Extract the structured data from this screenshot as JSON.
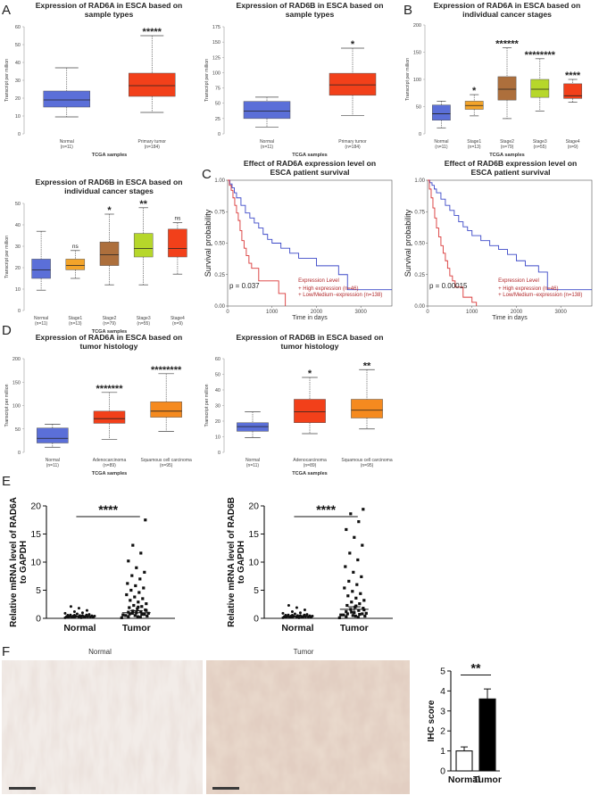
{
  "panels": {
    "A": "A",
    "B": "B",
    "C": "C",
    "D": "D",
    "E": "E",
    "F": "F"
  },
  "colors": {
    "normal": "#5b6fd8",
    "primary": "#f2401a",
    "stage1": "#f3a42a",
    "stage2": "#ad6f3c",
    "stage3": "#b6d72a",
    "stage4": "#f2401a",
    "adeno": "#f2401a",
    "squamous": "#f58a1f",
    "km_high": "#d93636",
    "km_low": "#3b48c8"
  },
  "chart_data": [
    {
      "id": "A1",
      "type": "box",
      "title": [
        "Expression of RAD6A in ESCA based on",
        "sample types"
      ],
      "ylabel": "Transcript per million",
      "xlabel": "TCGA samples",
      "ylim": [
        0,
        60
      ],
      "yticks": [
        0,
        10,
        20,
        30,
        40,
        50,
        60
      ],
      "categories": [
        "Normal",
        "Primary tumor"
      ],
      "ns": [
        "(n=11)",
        "(n=184)"
      ],
      "colorKeys": [
        "normal",
        "primary"
      ],
      "boxes": [
        [
          9.5,
          15,
          19,
          24,
          37
        ],
        [
          12,
          21,
          27,
          34,
          55
        ]
      ],
      "sig": [
        "",
        "*****"
      ]
    },
    {
      "id": "A2",
      "type": "box",
      "title": [
        "Expression of RAD6B in ESCA based on",
        "sample types"
      ],
      "ylabel": "Transcript per million",
      "xlabel": "TCGA samples",
      "ylim": [
        0,
        175
      ],
      "yticks": [
        0,
        25,
        50,
        75,
        100,
        125,
        150,
        175
      ],
      "categories": [
        "Normal",
        "Primary tumor"
      ],
      "ns": [
        "(n=11)",
        "(n=184)"
      ],
      "colorKeys": [
        "normal",
        "primary"
      ],
      "boxes": [
        [
          11,
          25,
          37,
          53,
          60
        ],
        [
          30,
          63,
          80,
          99,
          140
        ]
      ],
      "sig": [
        "",
        "*"
      ]
    },
    {
      "id": "B1",
      "type": "box",
      "title": [
        "Expression of RAD6A in ESCA based on",
        "individual cancer stages"
      ],
      "ylabel": "Transcript per million",
      "xlabel": "TCGA samples",
      "ylim": [
        0,
        200
      ],
      "yticks": [
        0,
        50,
        100,
        150,
        200
      ],
      "categories": [
        "Normal",
        "Stage1",
        "Stage2",
        "Stage3",
        "Stage4"
      ],
      "ns": [
        "(n=11)",
        "(n=13)",
        "(n=79)",
        "(n=55)",
        "(n=9)"
      ],
      "colorKeys": [
        "normal",
        "stage1",
        "stage2",
        "stage3",
        "stage4"
      ],
      "boxes": [
        [
          11,
          25,
          37,
          53,
          60
        ],
        [
          33,
          45,
          52,
          60,
          72
        ],
        [
          28,
          62,
          82,
          105,
          158
        ],
        [
          42,
          67,
          82,
          100,
          138
        ],
        [
          58,
          65,
          70,
          92,
          100
        ]
      ],
      "sig": [
        "",
        "*",
        "******",
        "********",
        "****"
      ]
    },
    {
      "id": "B2",
      "type": "box",
      "title": [
        "Expression of RAD6B in ESCA based on",
        "individual cancer stages"
      ],
      "ylabel": "Transcript per million",
      "xlabel": "TCGA samples",
      "ylim": [
        0,
        50
      ],
      "yticks": [
        0,
        10,
        20,
        30,
        40,
        50
      ],
      "categories": [
        "Normal",
        "Stage1",
        "Stage2",
        "Stage3",
        "Stage4"
      ],
      "ns": [
        "(n=11)",
        "(n=13)",
        "(n=79)",
        "(n=55)",
        "(n=9)"
      ],
      "colorKeys": [
        "normal",
        "stage1",
        "stage2",
        "stage3",
        "stage4"
      ],
      "boxes": [
        [
          9.5,
          15,
          19,
          24,
          37
        ],
        [
          15,
          19,
          21,
          24,
          28
        ],
        [
          12,
          21,
          26,
          32,
          45
        ],
        [
          12,
          25,
          29,
          36,
          48
        ],
        [
          17,
          25,
          29,
          38,
          41
        ]
      ],
      "sig": [
        "",
        "ns",
        "*",
        "**",
        "ns"
      ]
    },
    {
      "id": "C1",
      "type": "survival",
      "title": [
        "Effect of RAD6A expression level on",
        "ESCA patient survival"
      ],
      "ylabel": "Survival probability",
      "xlabel": "Time in days",
      "xlim": [
        0,
        3700
      ],
      "xticks": [
        0,
        1000,
        2000,
        3000
      ],
      "yticks": [
        0.0,
        0.25,
        0.5,
        0.75,
        1.0
      ],
      "yticklabels": [
        "0.00",
        "0.25",
        "0.50",
        "0.75",
        "1.00"
      ],
      "pvalue": "p = 0.037",
      "legend_title": "Expression Level",
      "legend": [
        "High expression (n=46)",
        "Low/Medium−expression (n=138)"
      ],
      "high": {
        "x": [
          0,
          40,
          80,
          120,
          160,
          200,
          240,
          280,
          320,
          370,
          420,
          480,
          540,
          600,
          700,
          800,
          900,
          1000,
          1150,
          1300
        ],
        "y": [
          1.0,
          0.96,
          0.92,
          0.86,
          0.8,
          0.74,
          0.68,
          0.6,
          0.52,
          0.46,
          0.4,
          0.34,
          0.3,
          0.3,
          0.2,
          0.2,
          0.2,
          0.2,
          0.1,
          0.0
        ]
      },
      "low": {
        "x": [
          0,
          50,
          100,
          150,
          200,
          300,
          400,
          500,
          600,
          700,
          800,
          900,
          1000,
          1200,
          1400,
          1600,
          1800,
          2000,
          2200,
          2500,
          2700,
          3000,
          3700
        ],
        "y": [
          1.0,
          0.97,
          0.94,
          0.9,
          0.86,
          0.8,
          0.74,
          0.7,
          0.66,
          0.62,
          0.57,
          0.53,
          0.5,
          0.46,
          0.42,
          0.38,
          0.38,
          0.32,
          0.32,
          0.25,
          0.13,
          0.13,
          0.13
        ]
      }
    },
    {
      "id": "C2",
      "type": "survival",
      "title": [
        "Effect of RAD6B expression level on",
        "ESCA patient survival"
      ],
      "ylabel": "Survival probability",
      "xlabel": "Time in days",
      "xlim": [
        0,
        3700
      ],
      "xticks": [
        0,
        1000,
        2000,
        3000
      ],
      "yticks": [
        0.0,
        0.25,
        0.5,
        0.75,
        1.0
      ],
      "yticklabels": [
        "0.00",
        "0.25",
        "0.50",
        "0.75",
        "1.00"
      ],
      "pvalue": "p = 0.00015",
      "legend_title": "Expression Level",
      "legend": [
        "High expression (n=46)",
        "Low/Medium−expression (n=138)"
      ],
      "high": {
        "x": [
          0,
          40,
          80,
          120,
          160,
          200,
          250,
          300,
          350,
          400,
          450,
          500,
          560,
          620,
          700,
          800,
          900,
          1000,
          1100
        ],
        "y": [
          1.0,
          0.93,
          0.86,
          0.78,
          0.7,
          0.62,
          0.55,
          0.48,
          0.42,
          0.36,
          0.3,
          0.24,
          0.2,
          0.15,
          0.15,
          0.07,
          0.07,
          0.03,
          0.0
        ]
      },
      "low": {
        "x": [
          0,
          50,
          100,
          150,
          200,
          300,
          400,
          500,
          600,
          700,
          800,
          900,
          1000,
          1200,
          1400,
          1600,
          1800,
          2000,
          2200,
          2500,
          2700,
          3000,
          3700
        ],
        "y": [
          1.0,
          0.98,
          0.96,
          0.93,
          0.9,
          0.85,
          0.8,
          0.76,
          0.72,
          0.67,
          0.63,
          0.6,
          0.56,
          0.52,
          0.48,
          0.45,
          0.41,
          0.36,
          0.32,
          0.27,
          0.13,
          0.13,
          0.13
        ]
      }
    },
    {
      "id": "D1",
      "type": "box",
      "title": [
        "Expression of RAD6A in ESCA based on",
        "tumor histology"
      ],
      "ylabel": "Transcript per million",
      "xlabel": "TCGA samples",
      "ylim": [
        0,
        200
      ],
      "yticks": [
        0,
        50,
        100,
        150,
        200
      ],
      "categories": [
        "Normal",
        "Adenocarcinoma",
        "Squamous cell carcinoma"
      ],
      "ns": [
        "(n=11)",
        "(n=89)",
        "(n=95)"
      ],
      "colorKeys": [
        "normal",
        "adeno",
        "squamous"
      ],
      "boxes": [
        [
          11,
          20,
          30,
          52,
          60
        ],
        [
          28,
          62,
          72,
          88,
          128
        ],
        [
          45,
          75,
          88,
          108,
          168
        ]
      ],
      "sig": [
        "",
        "*******",
        "********"
      ]
    },
    {
      "id": "D2",
      "type": "box",
      "title": [
        "Expression of RAD6B in ESCA based on",
        "tumor histology"
      ],
      "ylabel": "Transcript per million",
      "xlabel": "TCGA samples",
      "ylim": [
        0,
        60
      ],
      "yticks": [
        0,
        10,
        20,
        30,
        40,
        50,
        60
      ],
      "categories": [
        "Normal",
        "Adenocarcinoma",
        "Squamous cell carcinoma"
      ],
      "ns": [
        "(n=11)",
        "(n=89)",
        "(n=95)"
      ],
      "colorKeys": [
        "normal",
        "adeno",
        "squamous"
      ],
      "boxes": [
        [
          9.5,
          13.5,
          16.5,
          19,
          26
        ],
        [
          12,
          19,
          26,
          34,
          48
        ],
        [
          15,
          22,
          27,
          34,
          53
        ]
      ],
      "sig": [
        "",
        "*",
        "**"
      ]
    },
    {
      "id": "E1",
      "type": "scatter-dot",
      "ylabel": [
        "Relative mRNA level of RAD6A",
        "to GAPDH"
      ],
      "ylim": [
        0,
        20
      ],
      "yticks": [
        0,
        5,
        10,
        15,
        20
      ],
      "categories": [
        "Normal",
        "Tumor"
      ],
      "sig": "****",
      "mean": [
        0.35,
        1.0
      ],
      "sem": [
        0.05,
        0.35
      ],
      "normal": [
        0.1,
        0.15,
        0.2,
        0.25,
        0.3,
        0.3,
        0.35,
        0.4,
        0.45,
        0.5,
        0.55,
        0.6,
        0.2,
        0.15,
        0.1,
        0.25,
        0.3,
        0.35,
        0.4,
        0.5,
        0.6,
        0.7,
        0.8,
        0.9,
        1.0,
        1.2,
        1.4,
        1.8,
        2.1,
        0.2,
        0.3,
        0.4,
        0.15,
        0.25,
        0.45,
        0.55
      ],
      "tumor": [
        0.1,
        0.2,
        0.3,
        0.4,
        0.5,
        0.6,
        0.7,
        0.8,
        0.9,
        1.0,
        1.1,
        1.2,
        1.3,
        1.5,
        1.7,
        1.9,
        2.1,
        2.3,
        2.6,
        2.9,
        3.2,
        3.5,
        3.8,
        4.2,
        4.6,
        5.0,
        5.4,
        5.8,
        6.2,
        7.0,
        7.6,
        8.2,
        9.0,
        10.2,
        11.6,
        13.0,
        17.5,
        0.3,
        0.5,
        0.7,
        0.9,
        1.4,
        2.0
      ]
    },
    {
      "id": "E2",
      "type": "scatter-dot",
      "ylabel": [
        "Relative mRNA level of RAD6B",
        "to GAPDH"
      ],
      "ylim": [
        0,
        20
      ],
      "yticks": [
        0,
        5,
        10,
        15,
        20
      ],
      "categories": [
        "Normal",
        "Tumor"
      ],
      "sig": "****",
      "mean": [
        0.35,
        1.6
      ],
      "sem": [
        0.05,
        0.45
      ],
      "normal": [
        0.1,
        0.15,
        0.2,
        0.25,
        0.3,
        0.3,
        0.35,
        0.4,
        0.45,
        0.5,
        0.55,
        0.6,
        0.2,
        0.15,
        0.1,
        0.25,
        0.3,
        0.35,
        0.4,
        0.5,
        0.6,
        0.7,
        0.8,
        0.9,
        1.0,
        1.2,
        1.5,
        1.9,
        2.3,
        0.2,
        0.3,
        0.4,
        0.15,
        0.25,
        0.45,
        0.55
      ],
      "tumor": [
        0.1,
        0.2,
        0.3,
        0.4,
        0.5,
        0.6,
        0.7,
        0.8,
        0.9,
        1.0,
        1.2,
        1.4,
        1.6,
        1.8,
        2.0,
        2.3,
        2.6,
        2.9,
        3.2,
        3.6,
        4.0,
        4.4,
        4.8,
        5.4,
        6.0,
        6.6,
        7.4,
        8.2,
        9.2,
        10.4,
        11.6,
        13.0,
        14.4,
        15.8,
        17.2,
        18.6,
        19.4,
        0.4,
        0.6,
        0.8,
        1.1,
        1.5,
        2.2
      ]
    },
    {
      "id": "F",
      "type": "bar",
      "ylabel": "IHC score",
      "ylim": [
        0,
        5
      ],
      "yticks": [
        0,
        1,
        2,
        3,
        4,
        5
      ],
      "categories": [
        "Normal",
        "Tumor"
      ],
      "values": [
        1.0,
        3.6
      ],
      "errors": [
        0.2,
        0.5
      ],
      "sig": "**"
    }
  ],
  "ihc": {
    "normal_title": "Normal",
    "tumor_title": "Tumor"
  }
}
